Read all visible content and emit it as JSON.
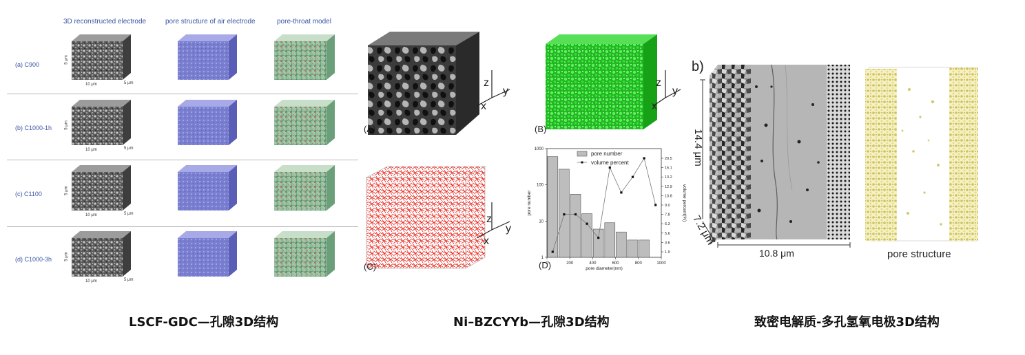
{
  "left_panel": {
    "column_headers": [
      "3D reconstructed electrode",
      "pore structure of air electrode",
      "pore-throat model"
    ],
    "rows": [
      {
        "label": "(a) C900"
      },
      {
        "label": "(b) C1000-1h"
      },
      {
        "label": "(c) C1100"
      },
      {
        "label": "(d) C1000-3h"
      }
    ],
    "dim_labels": {
      "height": "5 μm",
      "width": "10 μm",
      "depth": "5 μm"
    },
    "caption": "LSCF-GDC—孔隙3D结构"
  },
  "middle_panel": {
    "panel_labels": {
      "a": "(A)",
      "b": "(B)",
      "c": "(C)",
      "d": "(D)"
    },
    "axis_labels": {
      "z": "z",
      "y": "y",
      "x": "x"
    },
    "caption": "Ni–BZCYYb—孔隙3D结构"
  },
  "chart_data": {
    "type": "bar",
    "x": [
      50,
      150,
      250,
      350,
      450,
      550,
      650,
      750,
      850
    ],
    "series": [
      {
        "name": "pore number",
        "values": [
          600,
          270,
          55,
          16,
          6,
          9,
          5,
          3,
          3
        ]
      },
      {
        "name": "volume percent",
        "x": [
          50,
          150,
          250,
          350,
          450,
          550,
          650,
          750,
          850,
          950
        ],
        "values": [
          1.9,
          7.8,
          7.8,
          6.3,
          4.6,
          15.1,
          11.5,
          13.2,
          20.5,
          9.0
        ]
      }
    ],
    "xlabel": "pore diameter(nm)",
    "ylabel": "pore number",
    "y2label": "volume percent(%)",
    "xlim": [
      0,
      1000
    ],
    "ylim": [
      1,
      1000
    ],
    "yscale": "log",
    "x_ticks": [
      "0",
      "200",
      "400",
      "600",
      "800",
      "1000"
    ],
    "y_ticks": [
      "1",
      "10",
      "100",
      "1000"
    ],
    "y2_ticks": [
      "1.9",
      "3.6",
      "5.6",
      "6.3",
      "7.8",
      "9.0",
      "10.8",
      "12.9",
      "13.2",
      "15.1",
      "20.5"
    ],
    "legend_position": "top"
  },
  "right_panel": {
    "panel_label": "b)",
    "height_label": "14.4 μm",
    "depth_label": "7.2 μm",
    "width_label": "10.8 μm",
    "pore_label": "pore structure",
    "caption": "致密电解质-多孔氢氧电极3D结构"
  },
  "colors": {
    "accent_blue": "#3a55a4",
    "pore_green": "#2ed12e",
    "network_red": "#e8241a",
    "pore_yellow": "#e6dd86"
  }
}
